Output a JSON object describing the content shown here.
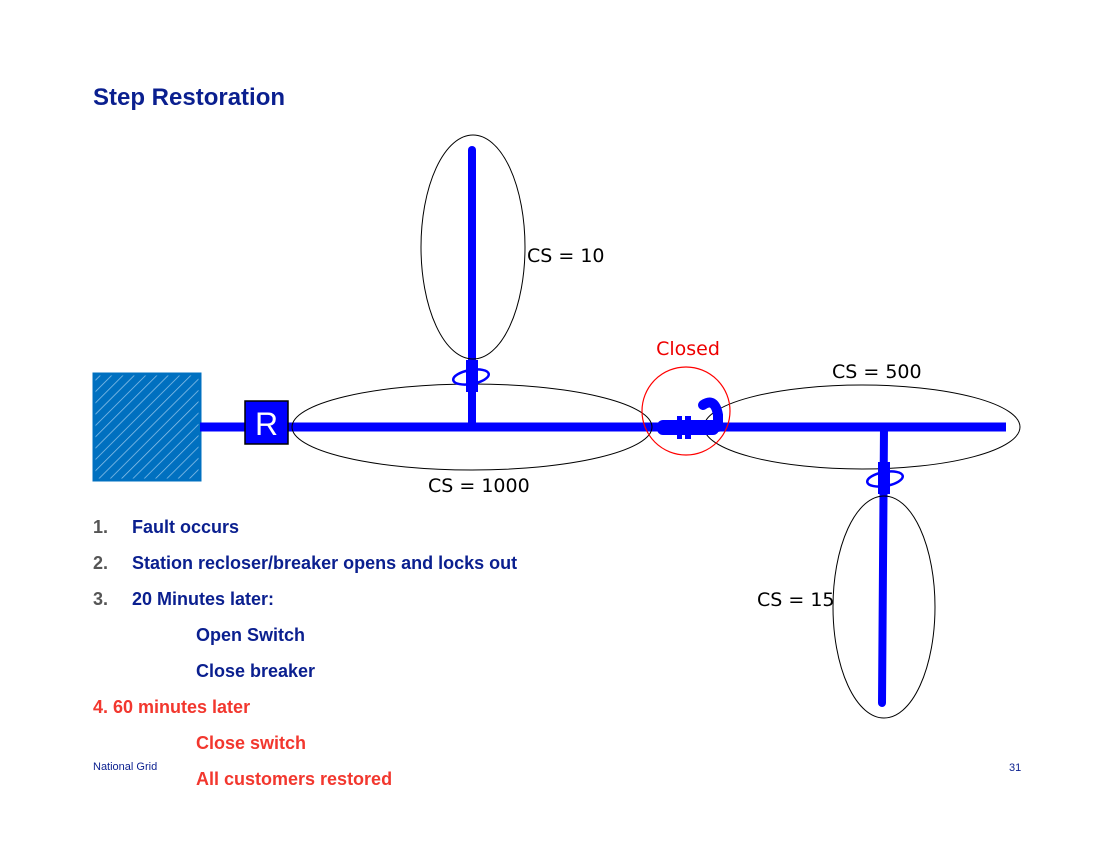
{
  "title": "Step Restoration",
  "diagram": {
    "recloser_label": "R",
    "closed_label": "Closed",
    "segments": [
      "CS = 10",
      "CS = 1000",
      "CS = 500",
      "CS = 15"
    ]
  },
  "steps": [
    {
      "num": "1.",
      "text": "Fault occurs"
    },
    {
      "num": "2.",
      "text": "Station recloser/breaker opens and locks out"
    },
    {
      "num": "3.",
      "text": "20 Minutes later:"
    }
  ],
  "substeps3": [
    "Open Switch",
    "Close breaker"
  ],
  "step4": "4. 60 minutes later",
  "substeps4": [
    "Close switch",
    "All customers restored"
  ],
  "footer": {
    "company": "National Grid",
    "page": "31"
  },
  "colors": {
    "line": "#0000ff",
    "title": "#0a1f8f",
    "highlight": "#f2372e",
    "substation": "#0070c0"
  }
}
